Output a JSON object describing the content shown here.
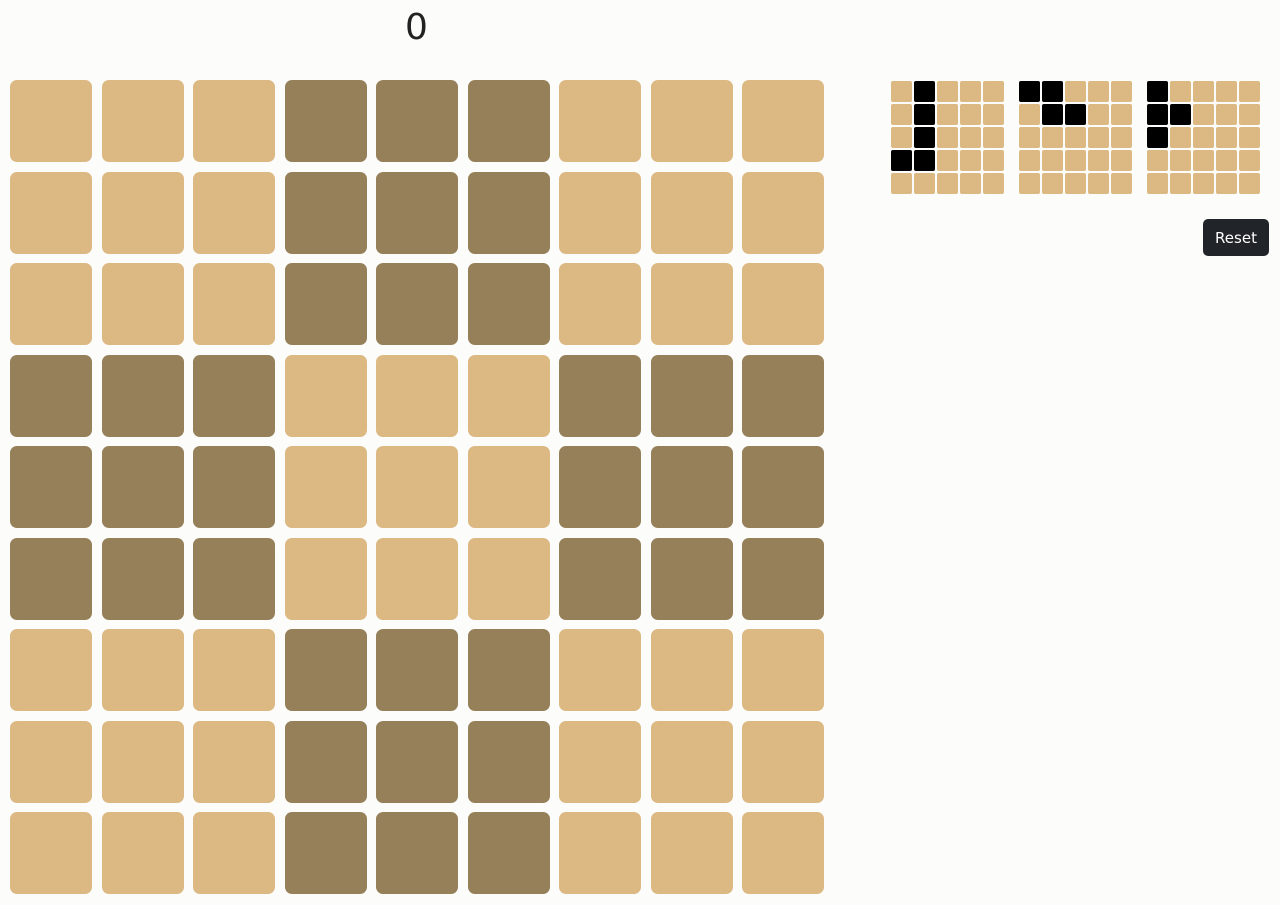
{
  "score": "0",
  "colors": {
    "light": "#dcb983",
    "dark": "#968059",
    "piece_filled": "#000000",
    "piece_empty": "#dcb983"
  },
  "board": [
    [
      0,
      0,
      0,
      1,
      1,
      1,
      0,
      0,
      0
    ],
    [
      0,
      0,
      0,
      1,
      1,
      1,
      0,
      0,
      0
    ],
    [
      0,
      0,
      0,
      1,
      1,
      1,
      0,
      0,
      0
    ],
    [
      1,
      1,
      1,
      0,
      0,
      0,
      1,
      1,
      1
    ],
    [
      1,
      1,
      1,
      0,
      0,
      0,
      1,
      1,
      1
    ],
    [
      1,
      1,
      1,
      0,
      0,
      0,
      1,
      1,
      1
    ],
    [
      0,
      0,
      0,
      1,
      1,
      1,
      0,
      0,
      0
    ],
    [
      0,
      0,
      0,
      1,
      1,
      1,
      0,
      0,
      0
    ],
    [
      0,
      0,
      0,
      1,
      1,
      1,
      0,
      0,
      0
    ]
  ],
  "pieces": [
    {
      "name": "j-shape",
      "cells": [
        [
          0,
          1,
          0,
          0,
          0
        ],
        [
          0,
          1,
          0,
          0,
          0
        ],
        [
          0,
          1,
          0,
          0,
          0
        ],
        [
          1,
          1,
          0,
          0,
          0
        ],
        [
          0,
          0,
          0,
          0,
          0
        ]
      ]
    },
    {
      "name": "z-shape",
      "cells": [
        [
          1,
          1,
          0,
          0,
          0
        ],
        [
          0,
          1,
          1,
          0,
          0
        ],
        [
          0,
          0,
          0,
          0,
          0
        ],
        [
          0,
          0,
          0,
          0,
          0
        ],
        [
          0,
          0,
          0,
          0,
          0
        ]
      ]
    },
    {
      "name": "t-shape",
      "cells": [
        [
          1,
          0,
          0,
          0,
          0
        ],
        [
          1,
          1,
          0,
          0,
          0
        ],
        [
          1,
          0,
          0,
          0,
          0
        ],
        [
          0,
          0,
          0,
          0,
          0
        ],
        [
          0,
          0,
          0,
          0,
          0
        ]
      ]
    }
  ],
  "reset_label": "Reset"
}
